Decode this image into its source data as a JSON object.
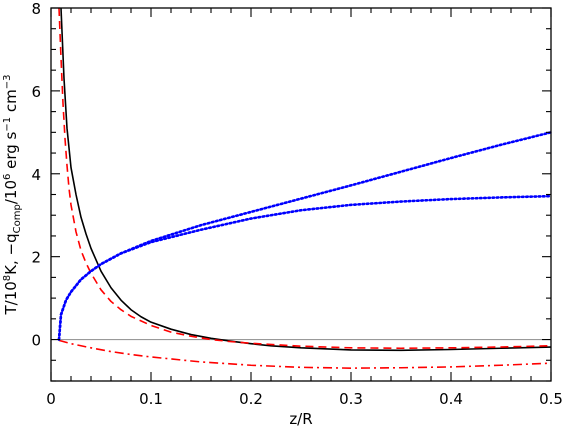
{
  "chart_data": {
    "type": "line",
    "xlabel": "z/R",
    "ylabel": {
      "parts": [
        {
          "text": "T/10",
          "kind": "normal"
        },
        {
          "text": "8",
          "kind": "sup"
        },
        {
          "text": "K,  −q",
          "kind": "normal"
        },
        {
          "text": "Comp",
          "kind": "sub"
        },
        {
          "text": "/10",
          "kind": "normal"
        },
        {
          "text": "6",
          "kind": "sup"
        },
        {
          "text": " erg s",
          "kind": "normal"
        },
        {
          "text": "−1",
          "kind": "sup"
        },
        {
          "text": " cm",
          "kind": "normal"
        },
        {
          "text": "−3",
          "kind": "sup"
        }
      ]
    },
    "xlim": [
      0,
      0.5
    ],
    "ylim": [
      -1,
      8
    ],
    "xticks": {
      "major": [
        "0",
        "0.1",
        "0.2",
        "0.3",
        "0.4",
        "0.5"
      ],
      "major_values": [
        0,
        0.1,
        0.2,
        0.3,
        0.4,
        0.5
      ],
      "minor_step": 0.02
    },
    "yticks": {
      "major": [
        "0",
        "2",
        "4",
        "6",
        "8"
      ],
      "major_values": [
        0,
        2,
        4,
        6,
        8
      ],
      "minor_step": 0.5
    },
    "zero_line": {
      "y": 0,
      "color": "#999999"
    },
    "series": [
      {
        "color": "#000000",
        "style": "solid",
        "x": [
          0.01,
          0.013,
          0.016,
          0.02,
          0.025,
          0.03,
          0.035,
          0.04,
          0.05,
          0.06,
          0.07,
          0.08,
          0.09,
          0.1,
          0.12,
          0.14,
          0.16,
          0.18,
          0.2,
          0.22,
          0.25,
          0.3,
          0.35,
          0.4,
          0.45,
          0.5
        ],
        "y": [
          8.0,
          6.3,
          5.1,
          4.15,
          3.5,
          2.95,
          2.55,
          2.2,
          1.65,
          1.25,
          0.95,
          0.72,
          0.55,
          0.42,
          0.25,
          0.12,
          0.03,
          -0.04,
          -0.1,
          -0.15,
          -0.2,
          -0.25,
          -0.26,
          -0.24,
          -0.21,
          -0.18
        ]
      },
      {
        "color": "#ff0000",
        "style": "dashed",
        "x": [
          0.008,
          0.01,
          0.012,
          0.014,
          0.016,
          0.018,
          0.02,
          0.025,
          0.03,
          0.035,
          0.04,
          0.05,
          0.06,
          0.07,
          0.08,
          0.1,
          0.12,
          0.14,
          0.16,
          0.18,
          0.2,
          0.25,
          0.3,
          0.35,
          0.4,
          0.45,
          0.5
        ],
        "y": [
          8.0,
          6.8,
          5.7,
          4.85,
          4.2,
          3.65,
          3.25,
          2.6,
          2.15,
          1.85,
          1.6,
          1.2,
          0.92,
          0.72,
          0.56,
          0.34,
          0.18,
          0.08,
          0.0,
          -0.05,
          -0.09,
          -0.16,
          -0.2,
          -0.21,
          -0.2,
          -0.18,
          -0.15
        ]
      },
      {
        "color": "#ff0000",
        "style": "dashdot",
        "x": [
          0.008,
          0.02,
          0.04,
          0.06,
          0.08,
          0.1,
          0.15,
          0.2,
          0.25,
          0.3,
          0.35,
          0.4,
          0.45,
          0.5
        ],
        "y": [
          -0.02,
          -0.1,
          -0.2,
          -0.29,
          -0.36,
          -0.42,
          -0.54,
          -0.62,
          -0.67,
          -0.69,
          -0.68,
          -0.66,
          -0.62,
          -0.57
        ]
      },
      {
        "color": "#0000ff",
        "style": "dotted",
        "x": [
          0.008,
          0.01,
          0.015,
          0.02,
          0.03,
          0.04,
          0.05,
          0.07,
          0.1,
          0.15,
          0.2,
          0.25,
          0.3,
          0.35,
          0.4,
          0.45,
          0.5
        ],
        "y": [
          0.0,
          0.6,
          0.95,
          1.15,
          1.45,
          1.65,
          1.82,
          2.08,
          2.38,
          2.76,
          3.08,
          3.4,
          3.72,
          4.05,
          4.38,
          4.7,
          5.0
        ]
      },
      {
        "color": "#0000ff",
        "style": "dotted",
        "x": [
          0.008,
          0.01,
          0.015,
          0.02,
          0.03,
          0.04,
          0.05,
          0.07,
          0.1,
          0.15,
          0.2,
          0.25,
          0.3,
          0.35,
          0.4,
          0.45,
          0.5
        ],
        "y": [
          0.0,
          0.6,
          0.95,
          1.15,
          1.45,
          1.65,
          1.82,
          2.08,
          2.35,
          2.65,
          2.92,
          3.12,
          3.25,
          3.33,
          3.39,
          3.43,
          3.46
        ]
      }
    ]
  }
}
